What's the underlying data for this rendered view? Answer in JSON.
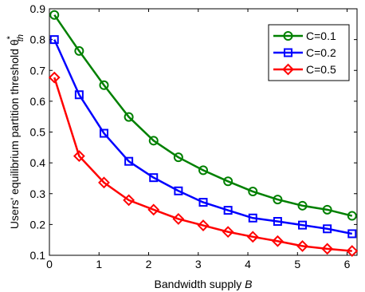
{
  "chart_data": {
    "type": "line",
    "title": "",
    "xlabel": "Bandwidth supply",
    "xlabel_var": "B",
    "ylabel": "Users' equilibrium partition threshold  θ",
    "ylabel_star": "*",
    "ylabel_sub": "th",
    "xlim": [
      0,
      6.2
    ],
    "ylim": [
      0.1,
      0.9
    ],
    "xticks": [
      0,
      1,
      2,
      3,
      4,
      5,
      6
    ],
    "yticks": [
      0.1,
      0.2,
      0.3,
      0.4,
      0.5,
      0.6,
      0.7,
      0.8,
      0.9
    ],
    "grid": false,
    "legend_position": "top-right",
    "x": [
      0.1,
      0.6,
      1.1,
      1.6,
      2.1,
      2.6,
      3.1,
      3.6,
      4.1,
      4.6,
      5.1,
      5.6,
      6.1
    ],
    "series": [
      {
        "name": "C=0.1",
        "color": "#008000",
        "marker": "circle",
        "values": [
          0.88,
          0.763,
          0.652,
          0.549,
          0.472,
          0.418,
          0.376,
          0.34,
          0.307,
          0.281,
          0.261,
          0.248,
          0.228
        ]
      },
      {
        "name": "C=0.2",
        "color": "#0000ff",
        "marker": "square",
        "values": [
          0.8,
          0.621,
          0.496,
          0.405,
          0.352,
          0.309,
          0.272,
          0.246,
          0.221,
          0.21,
          0.198,
          0.186,
          0.17
        ]
      },
      {
        "name": "C=0.5",
        "color": "#ff0000",
        "marker": "diamond",
        "values": [
          0.677,
          0.422,
          0.336,
          0.279,
          0.248,
          0.218,
          0.197,
          0.176,
          0.16,
          0.146,
          0.13,
          0.121,
          0.114
        ]
      }
    ]
  }
}
